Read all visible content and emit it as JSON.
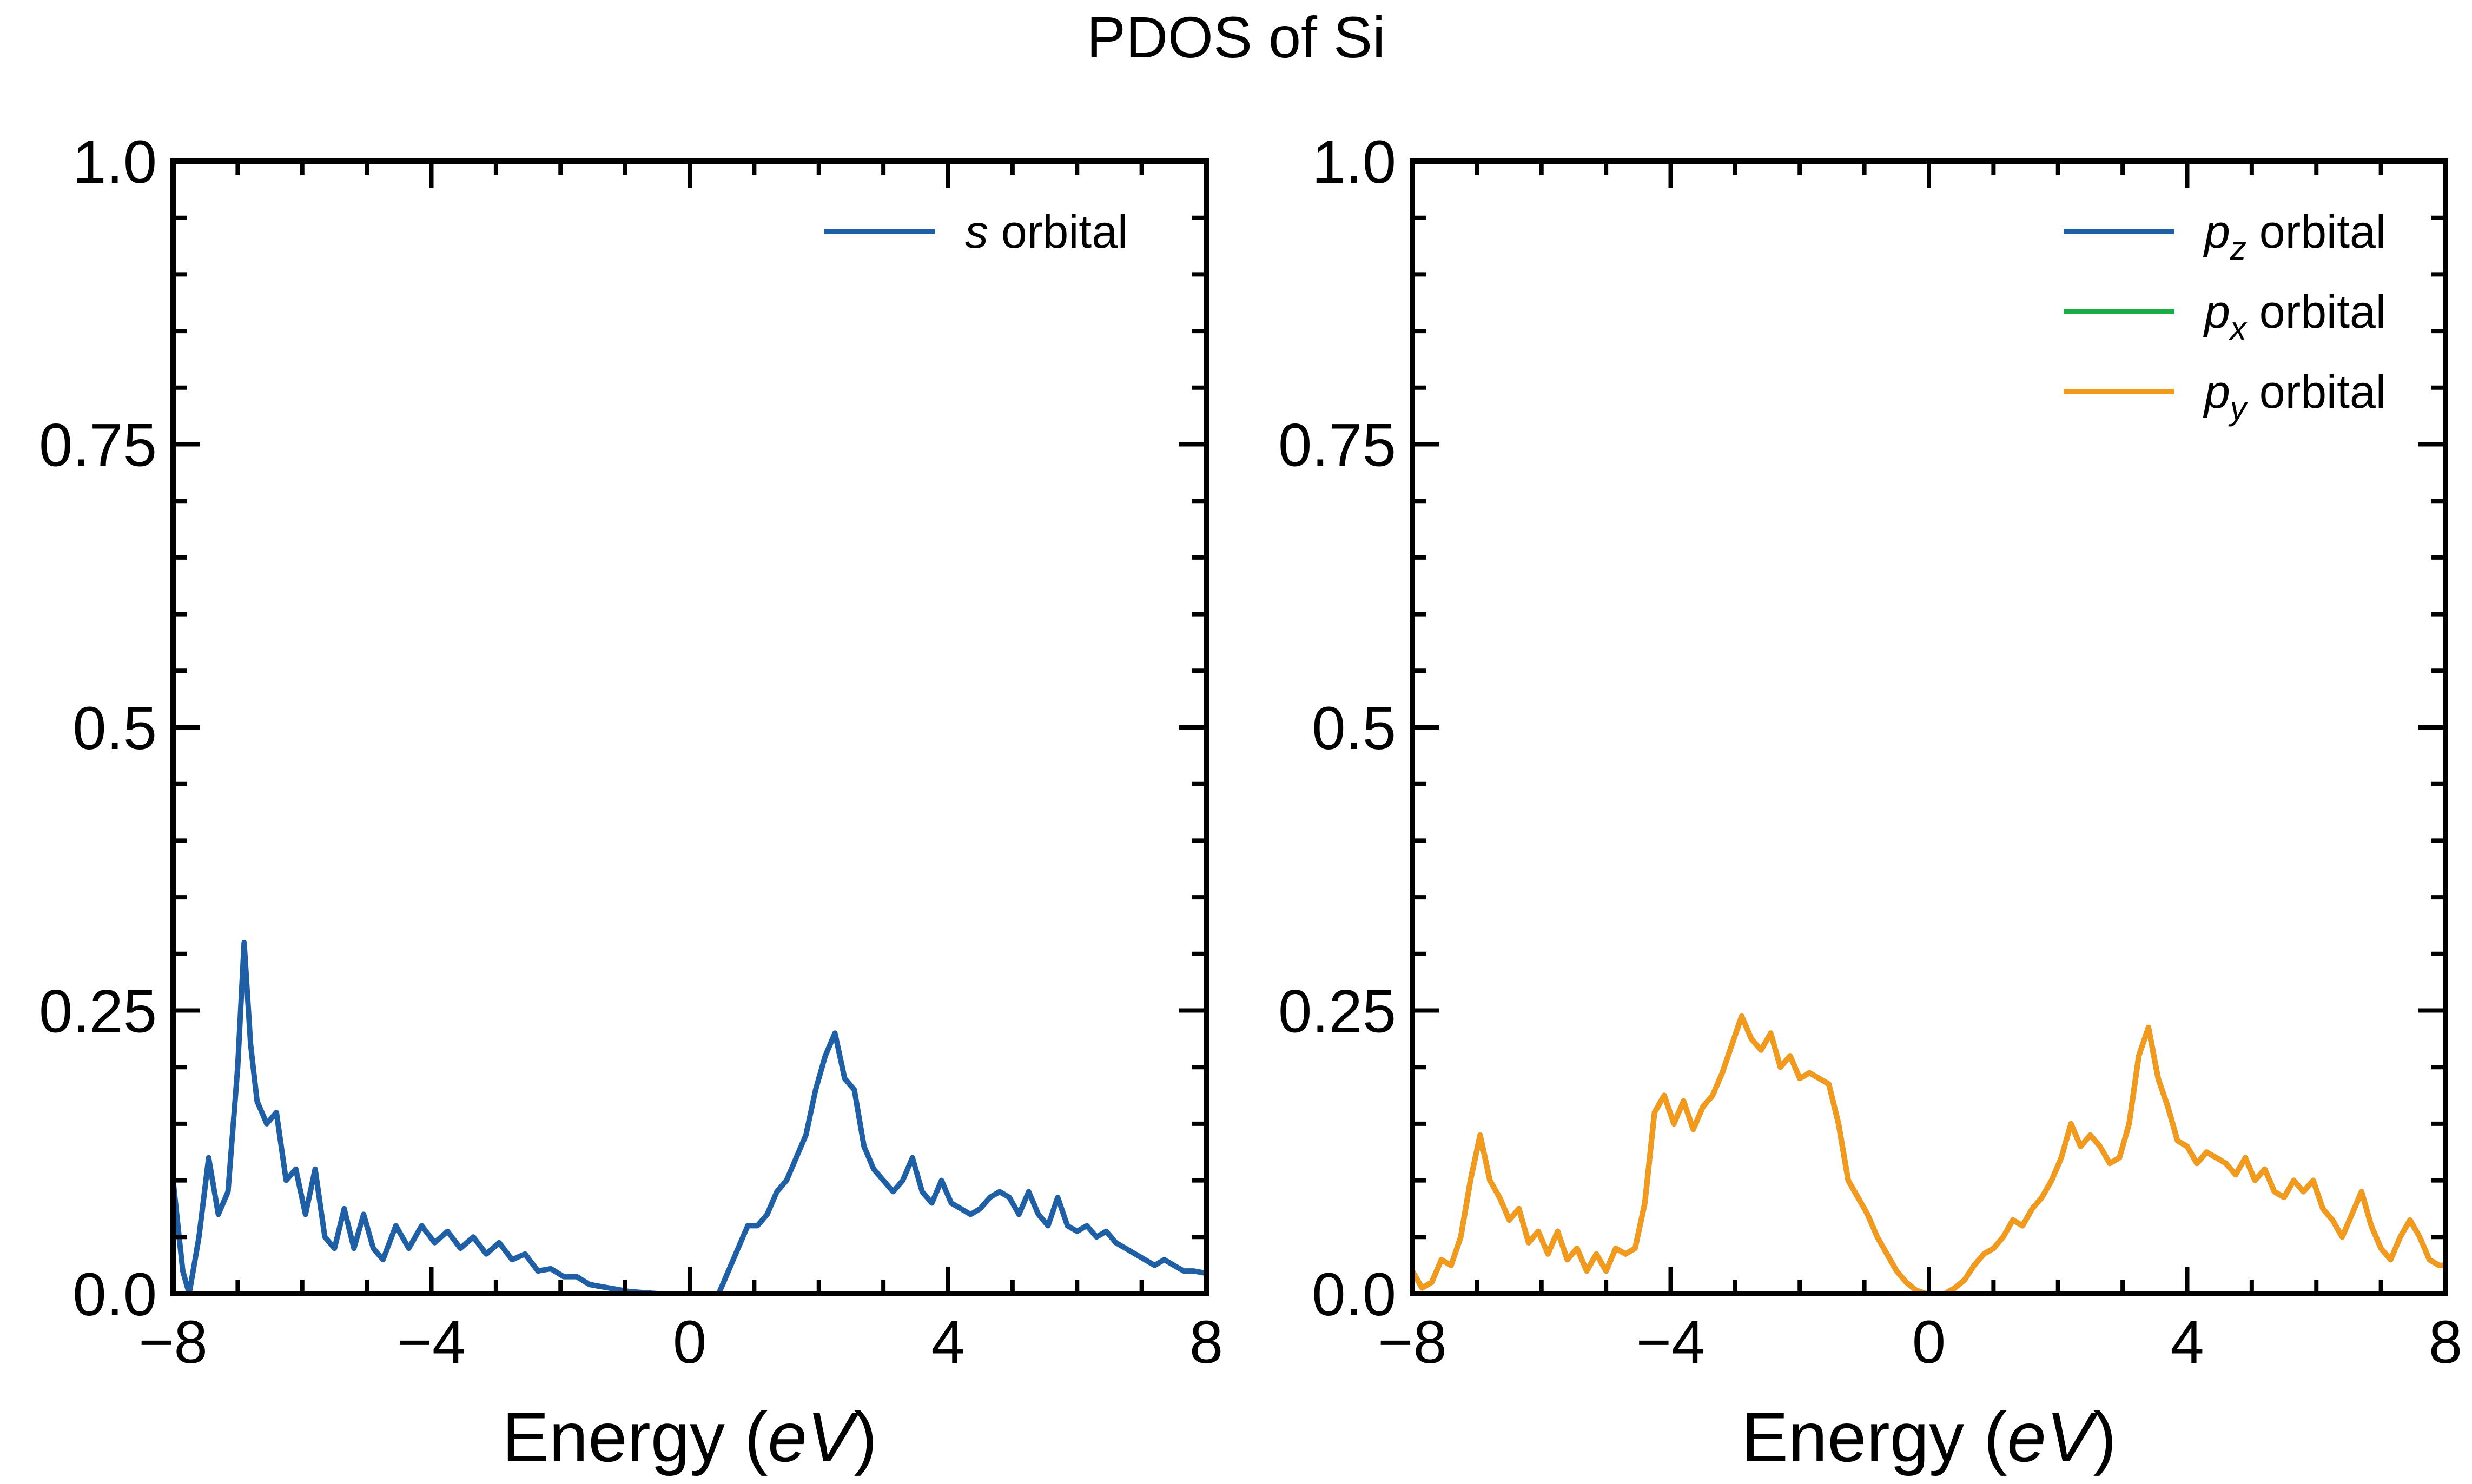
{
  "figure": {
    "title": "PDOS of Si"
  },
  "chart_data": [
    {
      "type": "line",
      "panel": "left",
      "xlabel": "Energy (eV)",
      "xlabel_parts": {
        "pre": "Energy (",
        "italic": "eV",
        "post": ")"
      },
      "ylabel": "",
      "xlim": [
        -8,
        8
      ],
      "ylim": [
        0,
        1.0
      ],
      "x_ticks": [
        -8,
        -4,
        0,
        4,
        8
      ],
      "x_tick_labels": [
        "−8",
        "−4",
        "0",
        "4",
        "8"
      ],
      "y_ticks": [
        0,
        0.25,
        0.5,
        0.75,
        1.0
      ],
      "y_tick_labels": [
        "0.0",
        "0.25",
        "0.5",
        "0.75",
        "1.0"
      ],
      "legend_position": "top-right",
      "grid": false,
      "series": [
        {
          "name": "s orbital",
          "name_parts": {
            "italic": "s",
            "sub": "",
            "rest": " orbital"
          },
          "color": "#1f5fa6",
          "points": [
            [
              -8.0,
              0.1
            ],
            [
              -7.85,
              0.02
            ],
            [
              -7.75,
              0.0
            ],
            [
              -7.6,
              0.05
            ],
            [
              -7.45,
              0.12
            ],
            [
              -7.3,
              0.07
            ],
            [
              -7.15,
              0.09
            ],
            [
              -7.0,
              0.2
            ],
            [
              -6.9,
              0.31
            ],
            [
              -6.8,
              0.22
            ],
            [
              -6.7,
              0.17
            ],
            [
              -6.55,
              0.15
            ],
            [
              -6.4,
              0.16
            ],
            [
              -6.25,
              0.1
            ],
            [
              -6.1,
              0.11
            ],
            [
              -5.95,
              0.07
            ],
            [
              -5.8,
              0.11
            ],
            [
              -5.65,
              0.05
            ],
            [
              -5.5,
              0.04
            ],
            [
              -5.35,
              0.075
            ],
            [
              -5.2,
              0.04
            ],
            [
              -5.05,
              0.07
            ],
            [
              -4.9,
              0.04
            ],
            [
              -4.75,
              0.03
            ],
            [
              -4.55,
              0.06
            ],
            [
              -4.35,
              0.04
            ],
            [
              -4.15,
              0.06
            ],
            [
              -3.95,
              0.045
            ],
            [
              -3.75,
              0.055
            ],
            [
              -3.55,
              0.04
            ],
            [
              -3.35,
              0.05
            ],
            [
              -3.15,
              0.035
            ],
            [
              -2.95,
              0.045
            ],
            [
              -2.75,
              0.03
            ],
            [
              -2.55,
              0.035
            ],
            [
              -2.35,
              0.02
            ],
            [
              -2.15,
              0.022
            ],
            [
              -1.95,
              0.015
            ],
            [
              -1.75,
              0.015
            ],
            [
              -1.55,
              0.008
            ],
            [
              -1.35,
              0.006
            ],
            [
              -1.15,
              0.004
            ],
            [
              -0.95,
              0.002
            ],
            [
              -0.75,
              0.001
            ],
            [
              -0.5,
              0.0
            ],
            [
              -0.2,
              0.0
            ],
            [
              0.0,
              0.0
            ],
            [
              0.2,
              0.0
            ],
            [
              0.45,
              0.0
            ],
            [
              0.6,
              0.02
            ],
            [
              0.75,
              0.04
            ],
            [
              0.9,
              0.06
            ],
            [
              1.05,
              0.06
            ],
            [
              1.2,
              0.07
            ],
            [
              1.35,
              0.09
            ],
            [
              1.5,
              0.1
            ],
            [
              1.65,
              0.12
            ],
            [
              1.8,
              0.14
            ],
            [
              1.95,
              0.18
            ],
            [
              2.1,
              0.21
            ],
            [
              2.25,
              0.23
            ],
            [
              2.4,
              0.19
            ],
            [
              2.55,
              0.18
            ],
            [
              2.7,
              0.13
            ],
            [
              2.85,
              0.11
            ],
            [
              3.0,
              0.1
            ],
            [
              3.15,
              0.09
            ],
            [
              3.3,
              0.1
            ],
            [
              3.45,
              0.12
            ],
            [
              3.6,
              0.09
            ],
            [
              3.75,
              0.08
            ],
            [
              3.9,
              0.1
            ],
            [
              4.05,
              0.08
            ],
            [
              4.2,
              0.075
            ],
            [
              4.35,
              0.07
            ],
            [
              4.5,
              0.075
            ],
            [
              4.65,
              0.085
            ],
            [
              4.8,
              0.09
            ],
            [
              4.95,
              0.085
            ],
            [
              5.1,
              0.07
            ],
            [
              5.25,
              0.09
            ],
            [
              5.4,
              0.07
            ],
            [
              5.55,
              0.06
            ],
            [
              5.7,
              0.085
            ],
            [
              5.85,
              0.06
            ],
            [
              6.0,
              0.055
            ],
            [
              6.15,
              0.06
            ],
            [
              6.3,
              0.05
            ],
            [
              6.45,
              0.055
            ],
            [
              6.6,
              0.045
            ],
            [
              6.75,
              0.04
            ],
            [
              6.9,
              0.035
            ],
            [
              7.05,
              0.03
            ],
            [
              7.2,
              0.025
            ],
            [
              7.35,
              0.03
            ],
            [
              7.5,
              0.025
            ],
            [
              7.65,
              0.02
            ],
            [
              7.8,
              0.02
            ],
            [
              8.0,
              0.018
            ]
          ]
        }
      ]
    },
    {
      "type": "line",
      "panel": "right",
      "xlabel": "Energy (eV)",
      "xlabel_parts": {
        "pre": "Energy (",
        "italic": "eV",
        "post": ")"
      },
      "ylabel": "",
      "xlim": [
        -8,
        8
      ],
      "ylim": [
        0,
        1.0
      ],
      "x_ticks": [
        -8,
        -4,
        0,
        4,
        8
      ],
      "x_tick_labels": [
        "−8",
        "−4",
        "0",
        "4",
        "8"
      ],
      "y_ticks": [
        0,
        0.25,
        0.5,
        0.75,
        1.0
      ],
      "y_tick_labels": [
        "0.0",
        "0.25",
        "0.5",
        "0.75",
        "1.0"
      ],
      "legend_position": "top-right",
      "grid": false,
      "series": [
        {
          "name": "pz orbital",
          "name_parts": {
            "italic": "p",
            "sub": "z",
            "rest": " orbital"
          },
          "color": "#1f5fa6",
          "points": [
            [
              -8.0,
              0.02
            ],
            [
              -7.85,
              0.005
            ],
            [
              -7.7,
              0.01
            ],
            [
              -7.55,
              0.03
            ],
            [
              -7.4,
              0.025
            ],
            [
              -7.25,
              0.05
            ],
            [
              -7.1,
              0.1
            ],
            [
              -6.95,
              0.14
            ],
            [
              -6.8,
              0.1
            ],
            [
              -6.65,
              0.085
            ],
            [
              -6.5,
              0.065
            ],
            [
              -6.35,
              0.075
            ],
            [
              -6.2,
              0.045
            ],
            [
              -6.05,
              0.055
            ],
            [
              -5.9,
              0.035
            ],
            [
              -5.75,
              0.055
            ],
            [
              -5.6,
              0.03
            ],
            [
              -5.45,
              0.04
            ],
            [
              -5.3,
              0.02
            ],
            [
              -5.15,
              0.035
            ],
            [
              -5.0,
              0.02
            ],
            [
              -4.85,
              0.04
            ],
            [
              -4.7,
              0.035
            ],
            [
              -4.55,
              0.04
            ],
            [
              -4.4,
              0.08
            ],
            [
              -4.25,
              0.16
            ],
            [
              -4.1,
              0.175
            ],
            [
              -3.95,
              0.15
            ],
            [
              -3.8,
              0.17
            ],
            [
              -3.65,
              0.145
            ],
            [
              -3.5,
              0.165
            ],
            [
              -3.35,
              0.175
            ],
            [
              -3.2,
              0.195
            ],
            [
              -3.05,
              0.22
            ],
            [
              -2.9,
              0.245
            ],
            [
              -2.75,
              0.225
            ],
            [
              -2.6,
              0.215
            ],
            [
              -2.45,
              0.23
            ],
            [
              -2.3,
              0.2
            ],
            [
              -2.15,
              0.21
            ],
            [
              -2.0,
              0.19
            ],
            [
              -1.85,
              0.195
            ],
            [
              -1.7,
              0.19
            ],
            [
              -1.55,
              0.185
            ],
            [
              -1.4,
              0.15
            ],
            [
              -1.25,
              0.1
            ],
            [
              -1.1,
              0.085
            ],
            [
              -0.95,
              0.07
            ],
            [
              -0.8,
              0.05
            ],
            [
              -0.65,
              0.035
            ],
            [
              -0.5,
              0.02
            ],
            [
              -0.35,
              0.01
            ],
            [
              -0.2,
              0.003
            ],
            [
              -0.05,
              0.0
            ],
            [
              0.1,
              0.0
            ],
            [
              0.25,
              0.0
            ],
            [
              0.4,
              0.005
            ],
            [
              0.55,
              0.012
            ],
            [
              0.7,
              0.025
            ],
            [
              0.85,
              0.035
            ],
            [
              1.0,
              0.04
            ],
            [
              1.15,
              0.05
            ],
            [
              1.3,
              0.065
            ],
            [
              1.45,
              0.06
            ],
            [
              1.6,
              0.075
            ],
            [
              1.75,
              0.085
            ],
            [
              1.9,
              0.1
            ],
            [
              2.05,
              0.12
            ],
            [
              2.2,
              0.15
            ],
            [
              2.35,
              0.13
            ],
            [
              2.5,
              0.14
            ],
            [
              2.65,
              0.13
            ],
            [
              2.8,
              0.115
            ],
            [
              2.95,
              0.12
            ],
            [
              3.1,
              0.15
            ],
            [
              3.25,
              0.21
            ],
            [
              3.4,
              0.235
            ],
            [
              3.55,
              0.19
            ],
            [
              3.7,
              0.165
            ],
            [
              3.85,
              0.135
            ],
            [
              4.0,
              0.13
            ],
            [
              4.15,
              0.115
            ],
            [
              4.3,
              0.125
            ],
            [
              4.45,
              0.12
            ],
            [
              4.6,
              0.115
            ],
            [
              4.75,
              0.105
            ],
            [
              4.9,
              0.12
            ],
            [
              5.05,
              0.1
            ],
            [
              5.2,
              0.11
            ],
            [
              5.35,
              0.09
            ],
            [
              5.5,
              0.085
            ],
            [
              5.65,
              0.1
            ],
            [
              5.8,
              0.09
            ],
            [
              5.95,
              0.1
            ],
            [
              6.1,
              0.075
            ],
            [
              6.25,
              0.065
            ],
            [
              6.4,
              0.05
            ],
            [
              6.55,
              0.07
            ],
            [
              6.7,
              0.09
            ],
            [
              6.85,
              0.06
            ],
            [
              7.0,
              0.04
            ],
            [
              7.15,
              0.03
            ],
            [
              7.3,
              0.05
            ],
            [
              7.45,
              0.065
            ],
            [
              7.6,
              0.05
            ],
            [
              7.75,
              0.03
            ],
            [
              7.9,
              0.025
            ],
            [
              8.0,
              0.025
            ]
          ]
        },
        {
          "name": "px orbital",
          "name_parts": {
            "italic": "p",
            "sub": "x",
            "rest": " orbital"
          },
          "color": "#1aaa47",
          "same_as": "pz orbital"
        },
        {
          "name": "py orbital",
          "name_parts": {
            "italic": "p",
            "sub": "y",
            "rest": " orbital"
          },
          "color": "#f39a1c",
          "same_as": "pz orbital"
        }
      ]
    }
  ]
}
